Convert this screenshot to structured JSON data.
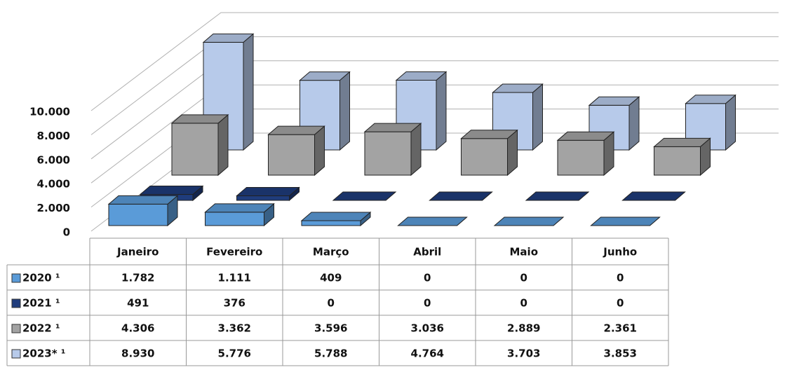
{
  "chart_data": {
    "type": "bar3d",
    "categories": [
      "Janeiro",
      "Fevereiro",
      "Março",
      "Abril",
      "Maio",
      "Junho"
    ],
    "series": [
      {
        "name": "2020 ¹",
        "color": "#5a9bd8",
        "values": [
          1782,
          1111,
          409,
          0,
          0,
          0
        ],
        "value_labels": [
          "1.782",
          "1.111",
          "409",
          "0",
          "0",
          "0"
        ]
      },
      {
        "name": "2021 ¹",
        "color": "#1f3c7c",
        "values": [
          491,
          376,
          0,
          0,
          0,
          0
        ],
        "value_labels": [
          "491",
          "376",
          "0",
          "0",
          "0",
          "0"
        ]
      },
      {
        "name": "2022 ¹",
        "color": "#a3a3a3",
        "values": [
          4306,
          3362,
          3596,
          3036,
          2889,
          2361
        ],
        "value_labels": [
          "4.306",
          "3.362",
          "3.596",
          "3.036",
          "2.889",
          "2.361"
        ]
      },
      {
        "name": "2023* ¹",
        "color": "#b7caea",
        "values": [
          8930,
          5776,
          5788,
          4764,
          3703,
          3853
        ],
        "value_labels": [
          "8.930",
          "5.776",
          "5.788",
          "4.764",
          "3.703",
          "3.853"
        ]
      }
    ],
    "ylim": [
      0,
      10000
    ],
    "yticks": [
      0,
      {
        "value": 2000,
        "label": "2.000"
      },
      {
        "value": 4000,
        "label": "4.000"
      },
      {
        "value": 6000,
        "label": "6.000"
      },
      {
        "value": 8000,
        "label": "8.000"
      },
      {
        "value": 10000,
        "label": "10.000"
      }
    ],
    "grid": true
  }
}
